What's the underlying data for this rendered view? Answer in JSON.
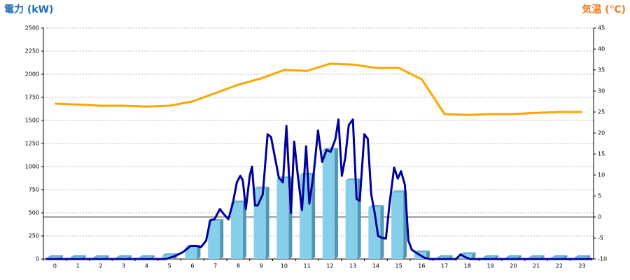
{
  "chart_data": {
    "type": "bar",
    "ylabel": "電力 (kW)",
    "y2label": "気温 (℃)",
    "categories": [
      "0",
      "1",
      "2",
      "3",
      "4",
      "5",
      "6",
      "7",
      "8",
      "9",
      "10",
      "11",
      "12",
      "13",
      "14",
      "15",
      "16",
      "17",
      "18",
      "19",
      "20",
      "21",
      "22",
      "23"
    ],
    "ylim": [
      0,
      2500
    ],
    "yticks": [
      0,
      250,
      500,
      750,
      1000,
      1250,
      1500,
      1750,
      2000,
      2250,
      2500
    ],
    "y2lim": [
      -10,
      45
    ],
    "y2ticks": [
      -10,
      -5,
      0,
      5,
      10,
      15,
      20,
      25,
      30,
      35,
      40,
      45
    ],
    "grid": true,
    "series": [
      {
        "type": "bar",
        "color": "#87ceeb",
        "values": [
          20,
          20,
          20,
          20,
          20,
          40,
          130,
          410,
          610,
          760,
          870,
          910,
          1180,
          850,
          560,
          720,
          70,
          20,
          50,
          20,
          20,
          20,
          20,
          20
        ]
      },
      {
        "type": "line",
        "color": "#000099",
        "x": [
          -0.4,
          4.85,
          5.16,
          5.56,
          5.92,
          6.17,
          6.38,
          6.6,
          6.78,
          6.96,
          7.2,
          7.39,
          7.57,
          7.76,
          7.94,
          8.09,
          8.2,
          8.33,
          8.5,
          8.6,
          8.73,
          8.85,
          9.07,
          9.28,
          9.43,
          9.6,
          9.77,
          9.95,
          10.1,
          10.3,
          10.44,
          10.6,
          10.78,
          10.96,
          11.1,
          11.3,
          11.48,
          11.66,
          11.85,
          12.03,
          12.24,
          12.37,
          12.52,
          12.67,
          12.82,
          13.0,
          13.16,
          13.3,
          13.5,
          13.65,
          13.8,
          13.95,
          14.1,
          14.26,
          14.44,
          14.6,
          14.8,
          14.96,
          15.1,
          15.27,
          15.42,
          15.57,
          15.75,
          15.94,
          16.15,
          16.37,
          17.5,
          17.7,
          17.9,
          18.1,
          23.45
        ],
        "values": [
          0,
          0,
          25,
          70,
          140,
          140,
          130,
          200,
          420,
          430,
          540,
          480,
          430,
          600,
          830,
          900,
          850,
          540,
          900,
          1000,
          580,
          580,
          700,
          1350,
          1320,
          1100,
          880,
          830,
          1440,
          500,
          1270,
          900,
          530,
          1220,
          600,
          950,
          1390,
          1050,
          1180,
          1160,
          1300,
          1510,
          900,
          1100,
          1450,
          1510,
          650,
          630,
          1350,
          1300,
          700,
          500,
          250,
          230,
          220,
          600,
          990,
          870,
          950,
          800,
          200,
          100,
          70,
          40,
          10,
          0,
          0,
          50,
          20,
          0,
          0
        ]
      },
      {
        "type": "line",
        "axis": "y2",
        "color": "#ffa500",
        "values": [
          27,
          26.8,
          26.5,
          26.5,
          26.3,
          26.5,
          27.5,
          29.5,
          31.5,
          33,
          35,
          34.8,
          36.5,
          36.3,
          35.5,
          35.5,
          32.8,
          24.5,
          24.3,
          24.5,
          24.5,
          24.8,
          25,
          25
        ]
      }
    ]
  }
}
